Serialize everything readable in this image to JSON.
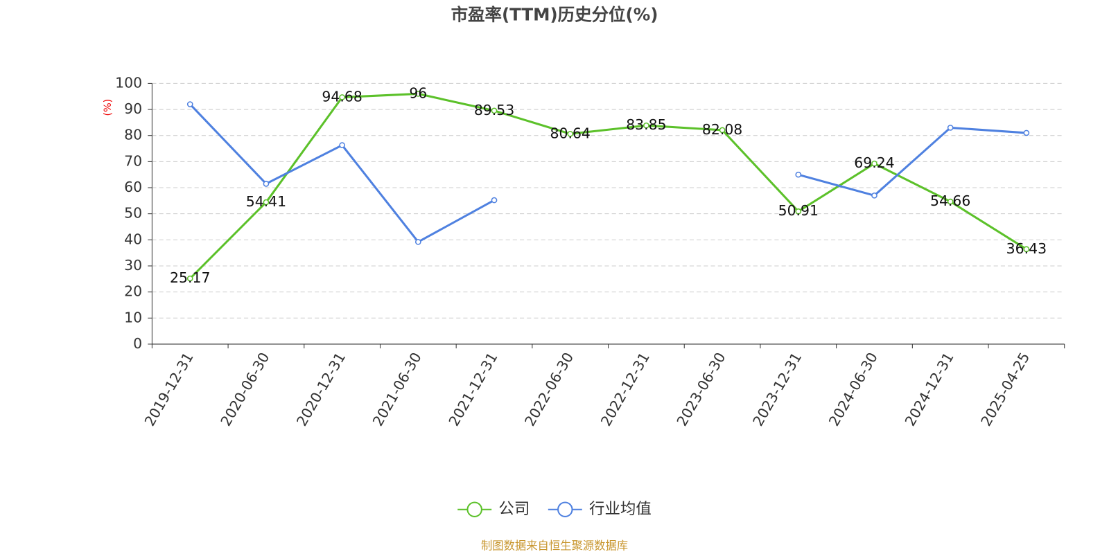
{
  "chart_data": {
    "type": "line",
    "title": "市盈率(TTM)历史分位(%)",
    "y_label": "(%)",
    "categories": [
      "2019-12-31",
      "2020-06-30",
      "2020-12-31",
      "2021-06-30",
      "2021-12-31",
      "2022-06-30",
      "2022-12-31",
      "2023-06-30",
      "2023-12-31",
      "2024-06-30",
      "2024-12-31",
      "2025-04-25"
    ],
    "series": [
      {
        "name": "公司",
        "color": "#5cc12a",
        "show_labels": true,
        "values": [
          25.17,
          54.41,
          94.68,
          96,
          89.53,
          80.64,
          83.85,
          82.08,
          50.91,
          69.24,
          54.66,
          36.43
        ]
      },
      {
        "name": "行业均值",
        "color": "#4f81e0",
        "show_labels": false,
        "values": [
          92,
          61.5,
          76.3,
          39.2,
          55.2,
          null,
          null,
          null,
          65,
          57,
          83,
          81
        ]
      }
    ],
    "ylim": [
      0,
      100
    ],
    "yticks": [
      0,
      10,
      20,
      30,
      40,
      50,
      60,
      70,
      80,
      90,
      100
    ],
    "grid": true,
    "source": "制图数据来自恒生聚源数据库"
  }
}
